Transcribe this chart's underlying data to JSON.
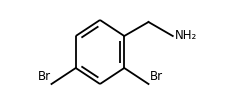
{
  "background_color": "#ffffff",
  "line_color": "#000000",
  "line_width": 1.3,
  "font_size": 8.5,
  "br1_label": "Br",
  "br2_label": "Br",
  "nh2_label": "NH₂"
}
